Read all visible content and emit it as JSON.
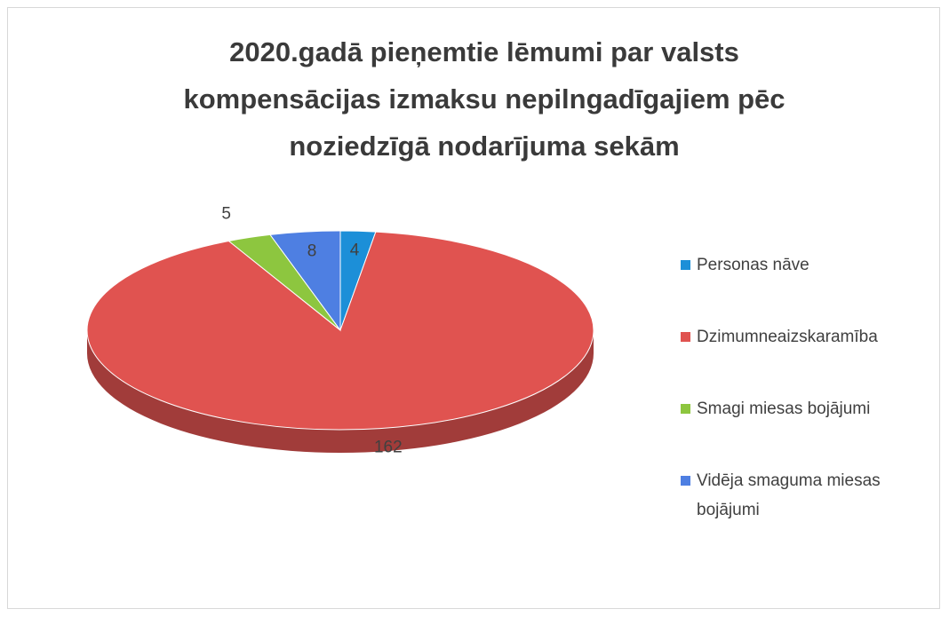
{
  "chart_data": {
    "type": "pie",
    "title": "2020.gadā pieņemtie lēmumi par valsts kompensācijas izmaksu nepilngadīgajiem pēc noziedzīgā nodarījuma sekām",
    "categories": [
      "Personas nāve",
      "Dzimumneaizskaramība",
      "Smagi miesas bojājumi",
      "Vidēja smaguma miesas bojājumi"
    ],
    "values": [
      4,
      162,
      5,
      8
    ],
    "colors": [
      "#1c8fd8",
      "#e05350",
      "#8dc63f",
      "#4e7fe2"
    ],
    "legend": "right"
  }
}
